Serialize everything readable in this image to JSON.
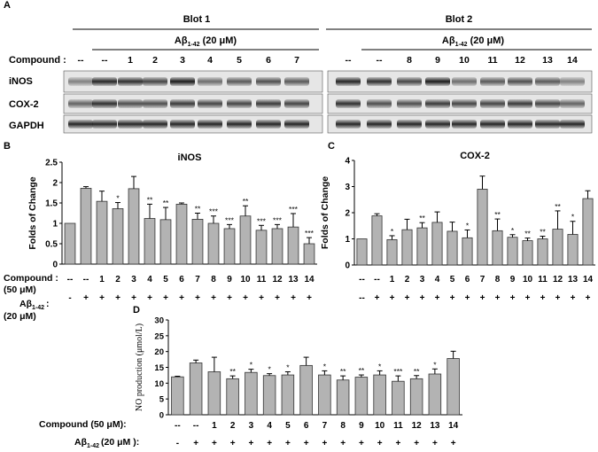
{
  "panel_labels": {
    "a": "A",
    "b": "B",
    "c": "C",
    "d": "D"
  },
  "blots": {
    "blot1": {
      "title": "Blot 1",
      "treatment_main": "Aβ",
      "treatment_sub": "1-42",
      "treatment_conc": "(20 μM)",
      "compound_label": "Compound :",
      "lanes": [
        "--",
        "--",
        "1",
        "2",
        "3",
        "4",
        "5",
        "6",
        "7"
      ]
    },
    "blot2": {
      "title": "Blot 2",
      "treatment_main": "Aβ",
      "treatment_sub": "1-42",
      "treatment_conc": "(20 μM)",
      "lanes": [
        "--",
        "--",
        "8",
        "9",
        "10",
        "11",
        "12",
        "13",
        "14"
      ]
    },
    "row_labels": [
      "iNOS",
      "COX-2",
      "GAPDH"
    ],
    "band_colors": {
      "dark": "#1a1a1a",
      "light": "#bdbdbd"
    }
  },
  "xaxis_rows": {
    "compound_label": "Compound :",
    "compound_conc": "(50 μM)",
    "abeta_main": "Aβ",
    "abeta_sub": "1-42",
    "abeta_suffix": ":",
    "abeta_conc": "(20 μM)",
    "panel_d_compound_label": "Compound (50 μM):",
    "panel_d_abeta_main": "Aβ",
    "panel_d_abeta_sub": "1-42",
    "panel_d_abeta_suffix": "(20 μM ):",
    "compound_values": [
      "--",
      "--",
      "1",
      "2",
      "3",
      "4",
      "5",
      "6",
      "7",
      "8",
      "9",
      "10",
      "11",
      "12",
      "13",
      "14"
    ],
    "abeta_values": [
      "-",
      "+",
      "+",
      "+",
      "+",
      "+",
      "+",
      "+",
      "+",
      "+",
      "+",
      "+",
      "+",
      "+",
      "+",
      "+"
    ],
    "panel_c_compound_values": [
      "--",
      "--",
      "1",
      "2",
      "3",
      "4",
      "5",
      "6",
      "7",
      "8",
      "9",
      "10",
      "11",
      "12",
      "13",
      "14"
    ],
    "panel_c_abeta_values": [
      "--",
      "+",
      "+",
      "+",
      "+",
      "+",
      "+",
      "+",
      "+",
      "+",
      "+",
      "+",
      "+",
      "+",
      "+",
      "+"
    ],
    "panel_d_abeta_values": [
      "-",
      "+",
      "+",
      "+",
      "+",
      "+",
      "+",
      "+",
      "+",
      "+",
      "+",
      "+",
      "+",
      "+",
      "+",
      "+"
    ]
  },
  "chart_data": [
    {
      "id": "B",
      "type": "bar",
      "title": "iNOS",
      "ylabel": "Folds of Change",
      "ylim": [
        0,
        2.5
      ],
      "yticks": [
        0,
        0.5,
        1,
        1.5,
        2,
        2.5
      ],
      "ytick_labels": [
        "0",
        "0.5",
        "1",
        "1.5",
        "2",
        "2.5"
      ],
      "categories": [
        "--",
        "--",
        "1",
        "2",
        "3",
        "4",
        "5",
        "6",
        "7",
        "8",
        "9",
        "10",
        "11",
        "12",
        "13",
        "14"
      ],
      "values": [
        1.0,
        1.86,
        1.54,
        1.36,
        1.85,
        1.12,
        1.09,
        1.47,
        1.1,
        1.0,
        0.87,
        1.18,
        0.83,
        0.87,
        0.91,
        0.5
      ],
      "errors": [
        0,
        0.04,
        0.25,
        0.15,
        0.3,
        0.35,
        0.3,
        0.03,
        0.15,
        0.18,
        0.1,
        0.25,
        0.12,
        0.1,
        0.33,
        0.15
      ],
      "annotations": [
        "",
        "",
        "",
        "*",
        "",
        "**",
        "**",
        "",
        "**",
        "***",
        "***",
        "**",
        "***",
        "***",
        "***",
        "***"
      ],
      "bar_color": "#b3b3b3"
    },
    {
      "id": "C",
      "type": "bar",
      "title": "COX-2",
      "ylabel": "Folds of Change",
      "ylim": [
        0,
        4
      ],
      "yticks": [
        0,
        1,
        2,
        3,
        4
      ],
      "ytick_labels": [
        "0",
        "1",
        "2",
        "3",
        "4"
      ],
      "categories": [
        "--",
        "--",
        "1",
        "2",
        "3",
        "4",
        "5",
        "6",
        "7",
        "8",
        "9",
        "10",
        "11",
        "12",
        "13",
        "14"
      ],
      "values": [
        1.0,
        1.88,
        0.97,
        1.35,
        1.42,
        1.63,
        1.29,
        1.04,
        2.9,
        1.31,
        1.06,
        0.93,
        1.0,
        1.37,
        1.17,
        2.54
      ],
      "errors": [
        0,
        0.08,
        0.15,
        0.4,
        0.2,
        0.4,
        0.35,
        0.3,
        0.5,
        0.45,
        0.1,
        0.1,
        0.1,
        0.7,
        0.5,
        0.3
      ],
      "annotations": [
        "",
        "",
        "*",
        "",
        "**",
        "",
        "",
        "*",
        "",
        "**",
        "*",
        "**",
        "**",
        "**",
        "*",
        ""
      ],
      "bar_color": "#b3b3b3"
    },
    {
      "id": "D",
      "type": "bar",
      "title": "",
      "ylabel": "NO production (μmol/L)",
      "ylim": [
        0,
        30
      ],
      "yticks": [
        0,
        5,
        10,
        15,
        20,
        25,
        30
      ],
      "ytick_labels": [
        "0",
        "5",
        "10",
        "15",
        "20",
        "25",
        "30"
      ],
      "categories": [
        "--",
        "--",
        "1",
        "2",
        "3",
        "4",
        "5",
        "6",
        "7",
        "8",
        "9",
        "10",
        "11",
        "12",
        "13",
        "14"
      ],
      "values": [
        12.0,
        16.4,
        13.6,
        11.4,
        13.4,
        12.4,
        12.6,
        15.6,
        12.6,
        11.0,
        11.9,
        12.6,
        10.6,
        11.4,
        12.9,
        17.8
      ],
      "errors": [
        0.2,
        0.9,
        4.6,
        0.9,
        1.0,
        0.6,
        1.0,
        2.6,
        1.3,
        1.3,
        0.7,
        1.3,
        1.7,
        1.0,
        1.6,
        2.3
      ],
      "annotations": [
        "",
        "",
        "",
        "**",
        "*",
        "*",
        "*",
        "",
        "*",
        "**",
        "**",
        "*",
        "***",
        "**",
        "*",
        ""
      ],
      "bar_color": "#b3b3b3"
    }
  ]
}
